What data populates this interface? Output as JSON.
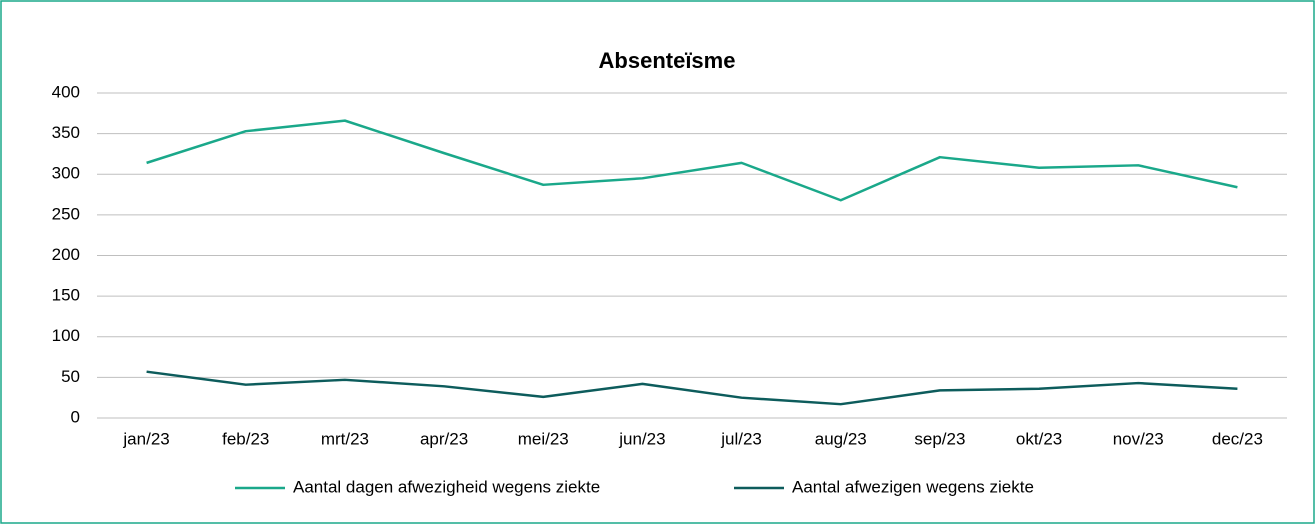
{
  "chart_data": {
    "type": "line",
    "title": "Absenteïsme",
    "categories": [
      "jan/23",
      "feb/23",
      "mrt/23",
      "apr/23",
      "mei/23",
      "jun/23",
      "jul/23",
      "aug/23",
      "sep/23",
      "okt/23",
      "nov/23",
      "dec/23"
    ],
    "series": [
      {
        "name": "Aantal dagen afwezigheid wegens ziekte",
        "color": "#1aa88a",
        "values": [
          314,
          353,
          366,
          326,
          287,
          295,
          314,
          268,
          321,
          308,
          311,
          284
        ]
      },
      {
        "name": "Aantal afwezigen wegens ziekte",
        "color": "#0d5c5c",
        "values": [
          57,
          41,
          47,
          39,
          26,
          42,
          25,
          17,
          34,
          36,
          43,
          36
        ]
      }
    ],
    "ylim": [
      0,
      400
    ],
    "yticks": [
      0,
      50,
      100,
      150,
      200,
      250,
      300,
      350,
      400
    ],
    "grid": true,
    "legend": "bottom"
  }
}
